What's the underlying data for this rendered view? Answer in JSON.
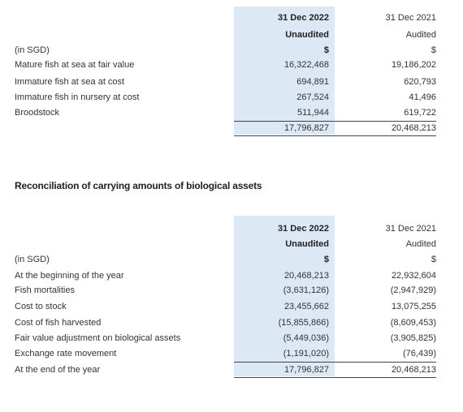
{
  "section_title": "Reconciliation of carrying amounts of biological assets",
  "tables": [
    {
      "col1_header": [
        "31 Dec 2022",
        "Unaudited",
        "$"
      ],
      "col2_header": [
        "31 Dec 2021",
        "Audited",
        "$"
      ],
      "unit_label": "(in SGD)",
      "rows": [
        [
          "Mature fish at sea at fair value",
          "16,322,468",
          "19,186,202"
        ],
        [
          "Immature fish at sea at cost",
          "694,891",
          "620,793"
        ],
        [
          "Immature fish in nursery at cost",
          "267,524",
          "41,496"
        ],
        [
          "Broodstock",
          "511,944",
          "619,722"
        ]
      ],
      "total": [
        "17,796,827",
        "20,468,213"
      ]
    },
    {
      "col1_header": [
        "31 Dec 2022",
        "Unaudited",
        "$"
      ],
      "col2_header": [
        "31 Dec 2021",
        "Audited",
        "$"
      ],
      "unit_label": "(in SGD)",
      "rows": [
        [
          "At the beginning of the year",
          "20,468,213",
          "22,932,604"
        ],
        [
          "Fish mortalities",
          "(3,631,126)",
          "(2,947,929)"
        ],
        [
          "Cost to stock",
          "23,455,662",
          "13,075,255"
        ],
        [
          "Cost of fish harvested",
          "(15,855,866)",
          "(8,609,453)"
        ],
        [
          "Fair value adjustment on biological assets",
          "(5,449,036)",
          "(3,905,825)"
        ],
        [
          "Exchange rate movement",
          "(1,191,020)",
          "(76,439)"
        ],
        [
          "At the end of the year",
          "17,796,827",
          "20,468,213"
        ]
      ]
    }
  ]
}
